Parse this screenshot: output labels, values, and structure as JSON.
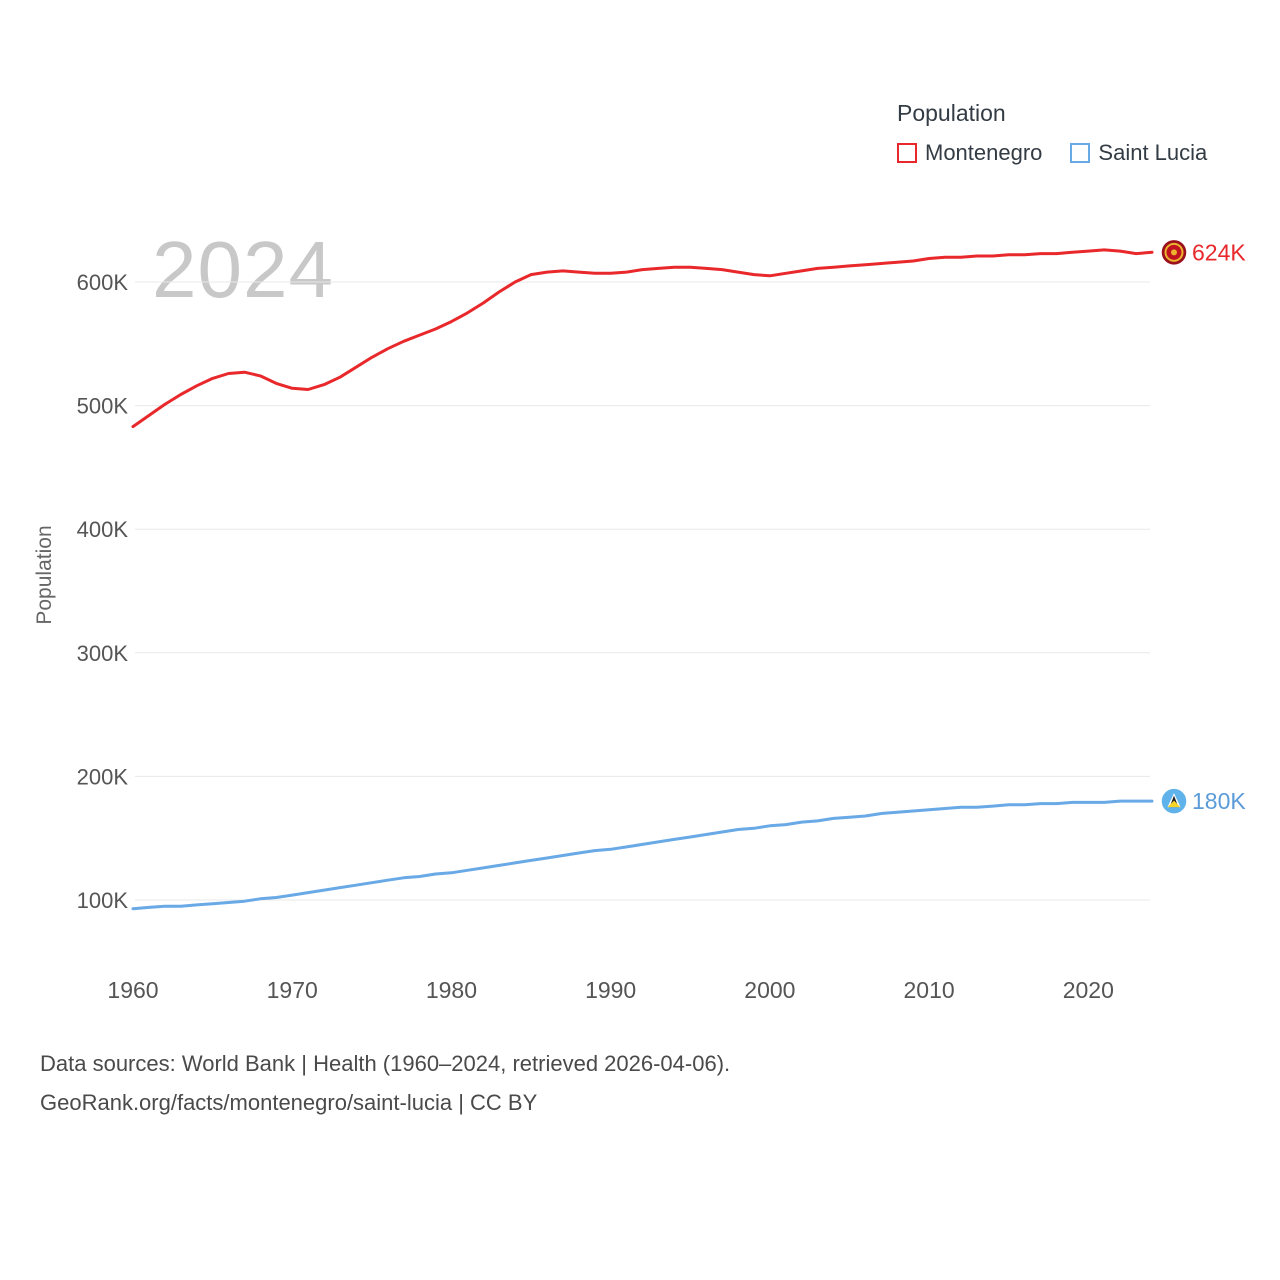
{
  "watermark": "2024",
  "legend": {
    "title": "Population",
    "items": [
      {
        "label": "Montenegro",
        "color": "#e8282b"
      },
      {
        "label": "Saint Lucia",
        "color": "#68a9e6"
      }
    ]
  },
  "y_axis": {
    "label": "Population",
    "ticks": [
      "100K",
      "200K",
      "300K",
      "400K",
      "500K",
      "600K"
    ],
    "tick_values": [
      100000,
      200000,
      300000,
      400000,
      500000,
      600000
    ]
  },
  "x_axis": {
    "ticks": [
      1960,
      1970,
      1980,
      1990,
      2000,
      2010,
      2020
    ]
  },
  "end_labels": [
    {
      "series": "Montenegro",
      "text": "624K",
      "color": "#e8282b"
    },
    {
      "series": "Saint Lucia",
      "text": "180K",
      "color": "#5b9bd8"
    }
  ],
  "footer": {
    "line1": "Data sources: World Bank | Health (1960–2024, retrieved 2026-04-06).",
    "line2": "GeoRank.org/facts/montenegro/saint-lucia | CC BY"
  },
  "chart_data": {
    "type": "line",
    "title": "Population",
    "xlabel": "",
    "ylabel": "Population",
    "xlim": [
      1960,
      2024
    ],
    "ylim": [
      50000,
      650000
    ],
    "grid": true,
    "legend_position": "top-right",
    "x": [
      1960,
      1961,
      1962,
      1963,
      1964,
      1965,
      1966,
      1967,
      1968,
      1969,
      1970,
      1971,
      1972,
      1973,
      1974,
      1975,
      1976,
      1977,
      1978,
      1979,
      1980,
      1981,
      1982,
      1983,
      1984,
      1985,
      1986,
      1987,
      1988,
      1989,
      1990,
      1991,
      1992,
      1993,
      1994,
      1995,
      1996,
      1997,
      1998,
      1999,
      2000,
      2001,
      2002,
      2003,
      2004,
      2005,
      2006,
      2007,
      2008,
      2009,
      2010,
      2011,
      2012,
      2013,
      2014,
      2015,
      2016,
      2017,
      2018,
      2019,
      2020,
      2021,
      2022,
      2023,
      2024
    ],
    "series": [
      {
        "name": "Montenegro",
        "color": "#e8282b",
        "values": [
          483000,
          492000,
          501000,
          509000,
          516000,
          522000,
          526000,
          527000,
          524000,
          518000,
          514000,
          513000,
          517000,
          523000,
          531000,
          539000,
          546000,
          552000,
          557000,
          562000,
          568000,
          575000,
          583000,
          592000,
          600000,
          606000,
          608000,
          609000,
          608000,
          607000,
          607000,
          608000,
          610000,
          611000,
          612000,
          612000,
          611000,
          610000,
          608000,
          606000,
          605000,
          607000,
          609000,
          611000,
          612000,
          613000,
          614000,
          615000,
          616000,
          617000,
          619000,
          620000,
          620000,
          621000,
          621000,
          622000,
          622000,
          623000,
          623000,
          624000,
          625000,
          626000,
          625000,
          623000,
          624000
        ]
      },
      {
        "name": "Saint Lucia",
        "color": "#68a9e6",
        "values": [
          93000,
          94000,
          95000,
          95000,
          96000,
          97000,
          98000,
          99000,
          101000,
          102000,
          104000,
          106000,
          108000,
          110000,
          112000,
          114000,
          116000,
          118000,
          119000,
          121000,
          122000,
          124000,
          126000,
          128000,
          130000,
          132000,
          134000,
          136000,
          138000,
          140000,
          141000,
          143000,
          145000,
          147000,
          149000,
          151000,
          153000,
          155000,
          157000,
          158000,
          160000,
          161000,
          163000,
          164000,
          166000,
          167000,
          168000,
          170000,
          171000,
          172000,
          173000,
          174000,
          175000,
          175000,
          176000,
          177000,
          177000,
          178000,
          178000,
          179000,
          179000,
          179000,
          180000,
          180000,
          180000
        ]
      }
    ]
  }
}
